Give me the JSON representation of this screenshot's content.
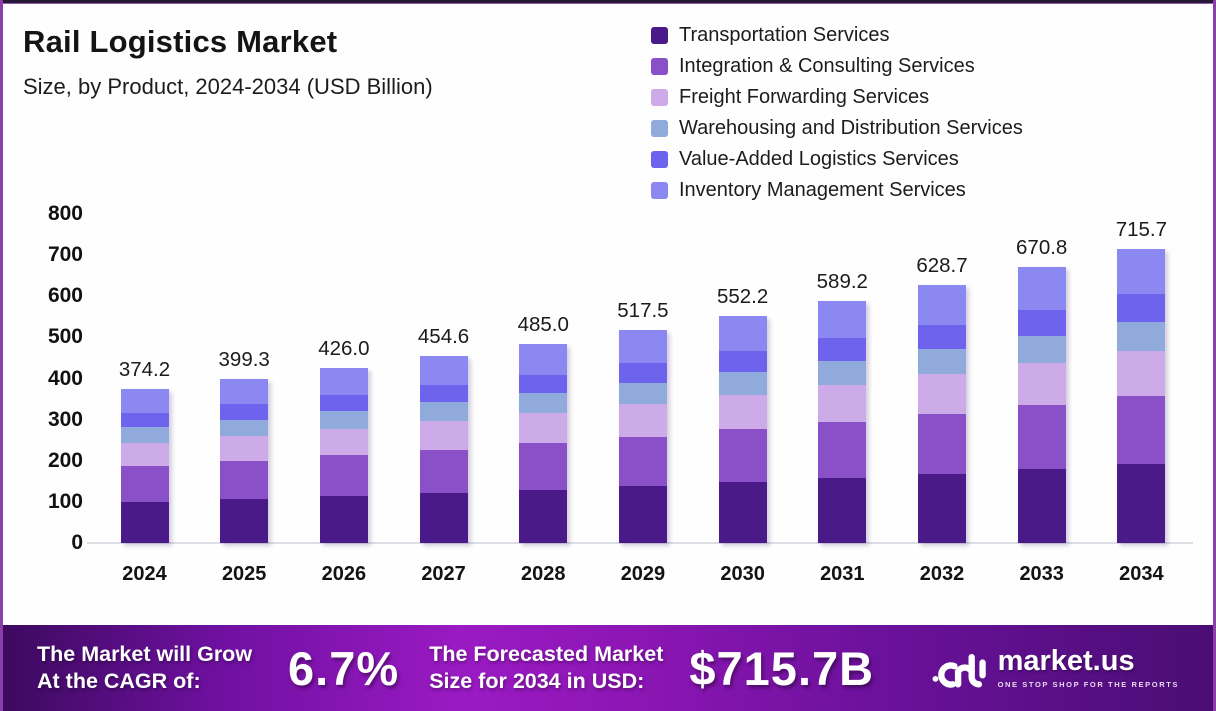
{
  "header": {
    "title": "Rail Logistics Market",
    "subtitle": "Size, by Product, 2024-2034 (USD Billion)"
  },
  "chart_data": {
    "type": "bar",
    "variant": "stacked",
    "title": "Rail Logistics Market Size, by Product, 2024-2034 (USD Billion)",
    "unit": "USD Billion",
    "categories": [
      "2024",
      "2025",
      "2026",
      "2027",
      "2028",
      "2029",
      "2030",
      "2031",
      "2032",
      "2033",
      "2034"
    ],
    "totals": [
      374.2,
      399.3,
      426.0,
      454.6,
      485.0,
      517.5,
      552.2,
      589.2,
      628.7,
      670.8,
      715.7
    ],
    "series": [
      {
        "name": "Transportation Services",
        "color": "#4a1a88",
        "values": [
          100.3,
          107.0,
          114.2,
          121.8,
          130.0,
          138.7,
          148.0,
          157.9,
          168.5,
          179.8,
          191.8
        ]
      },
      {
        "name": "Integration & Consulting Services",
        "color": "#8a50c8",
        "values": [
          86.8,
          92.6,
          98.8,
          105.5,
          112.5,
          120.1,
          128.1,
          136.7,
          145.9,
          155.6,
          166.0
        ]
      },
      {
        "name": "Freight Forwarding Services",
        "color": "#cdabe8",
        "values": [
          56.9,
          60.7,
          64.8,
          69.1,
          73.7,
          78.7,
          83.9,
          89.6,
          95.6,
          102.0,
          108.8
        ]
      },
      {
        "name": "Warehousing and Distribution Services",
        "color": "#90aadc",
        "values": [
          37.4,
          39.9,
          42.6,
          45.5,
          48.5,
          51.8,
          55.2,
          58.9,
          62.9,
          67.1,
          71.6
        ]
      },
      {
        "name": "Value-Added Logistics Services",
        "color": "#6d63ed",
        "values": [
          34.8,
          37.1,
          39.6,
          42.3,
          45.1,
          48.1,
          51.4,
          54.8,
          58.5,
          62.4,
          66.6
        ]
      },
      {
        "name": "Inventory Management Services",
        "color": "#8b89f1",
        "values": [
          58.0,
          62.0,
          66.0,
          70.4,
          75.2,
          80.1,
          85.6,
          91.3,
          97.3,
          103.9,
          110.9
        ]
      }
    ],
    "note": "Segment values estimated from bar proportions; only totals are labeled on chart",
    "ylim": [
      0,
      800
    ],
    "yticks": [
      0,
      100,
      200,
      300,
      400,
      500,
      600,
      700,
      800
    ],
    "grid": false,
    "legend_position": "top-right"
  },
  "banner": {
    "cagr_label_line1": "The Market will Grow",
    "cagr_label_line2": "At the CAGR of:",
    "cagr_value": "6.7%",
    "forecast_label_line1": "The Forecasted Market",
    "forecast_label_line2": "Size for 2034 in USD:",
    "forecast_value": "$715.7B",
    "brand": "market.us",
    "tagline": "ONE STOP SHOP FOR THE REPORTS",
    "logo_icon": "market-us-squiggle-mark",
    "colors": {
      "banner_bright": "#9a1ac3",
      "banner_dark": "#3c0a5f",
      "text": "#ffffff"
    }
  }
}
